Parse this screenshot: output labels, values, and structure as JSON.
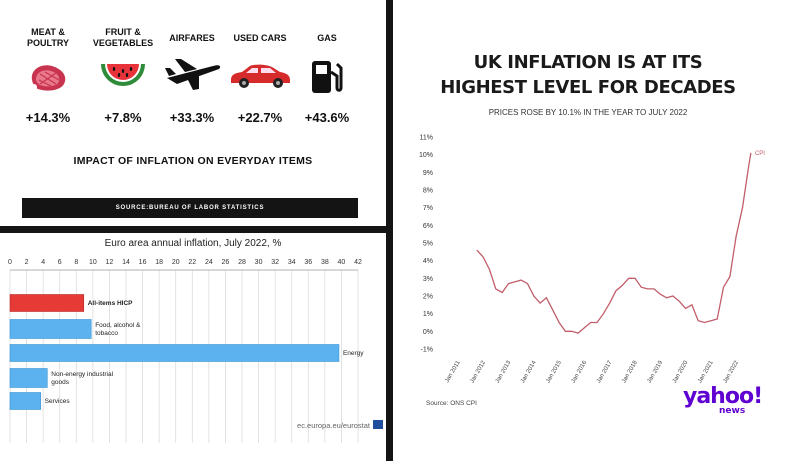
{
  "panel1": {
    "items": [
      {
        "label": "MEAT &\nPOULTRY",
        "value": "+14.3%",
        "icon": "meat-icon"
      },
      {
        "label": "FRUIT &\nVEGETABLES",
        "value": "+7.8%",
        "icon": "watermelon-icon"
      },
      {
        "label": "AIRFARES",
        "value": "+33.3%",
        "icon": "airplane-icon"
      },
      {
        "label": "USED CARS",
        "value": "+22.7%",
        "icon": "car-icon"
      },
      {
        "label": "GAS",
        "value": "+43.6%",
        "icon": "gas-pump-icon"
      }
    ],
    "headline": "IMPACT OF INFLATION ON EVERYDAY ITEMS",
    "source": "SOURCE:BUREAU OF LABOR STATISTICS"
  },
  "panel2": {
    "footer": "ec.europa.eu/eurostat"
  },
  "panel3": {
    "source": "Source: ONS CPI",
    "logo": "yahoo!",
    "logo_sub": "news"
  },
  "colors": {
    "eu_red": "#e63a37",
    "eu_blue": "#5bb2ee",
    "cpi_line": "#c25d6a",
    "yahoo_purple": "#5f01d1"
  },
  "chart_data": [
    {
      "type": "bar",
      "orientation": "horizontal",
      "title": "Euro area annual inflation, July 2022, %",
      "categories": [
        "All-items HICP",
        "Food, alcohol & tobacco",
        "Energy",
        "Non-energy industrial goods",
        "Services"
      ],
      "values": [
        8.9,
        9.8,
        39.7,
        4.5,
        3.7
      ],
      "highlight": "All-items HICP",
      "xlim": [
        0,
        42
      ],
      "xticks": [
        0,
        2,
        4,
        6,
        8,
        10,
        12,
        14,
        16,
        18,
        20,
        22,
        24,
        26,
        28,
        30,
        32,
        34,
        36,
        38,
        40,
        42
      ],
      "grid": true
    },
    {
      "type": "line",
      "title": "UK INFLATION IS AT ITS HIGHEST LEVEL FOR DECADES",
      "subtitle": "PRICES ROSE BY 10.1% IN THE YEAR TO JULY 2022",
      "series": [
        {
          "name": "CPI",
          "x": [
            "2011-09",
            "2011-12",
            "2012-03",
            "2012-06",
            "2012-09",
            "2012-12",
            "2013-03",
            "2013-06",
            "2013-09",
            "2013-12",
            "2014-03",
            "2014-06",
            "2014-09",
            "2014-12",
            "2015-03",
            "2015-06",
            "2015-09",
            "2015-12",
            "2016-03",
            "2016-06",
            "2016-09",
            "2016-12",
            "2017-03",
            "2017-06",
            "2017-09",
            "2017-12",
            "2018-03",
            "2018-06",
            "2018-09",
            "2018-12",
            "2019-03",
            "2019-06",
            "2019-09",
            "2019-12",
            "2020-03",
            "2020-06",
            "2020-09",
            "2020-12",
            "2021-03",
            "2021-06",
            "2021-09",
            "2021-12",
            "2022-03",
            "2022-06",
            "2022-07"
          ],
          "values": [
            4.6,
            4.2,
            3.5,
            2.4,
            2.2,
            2.7,
            2.8,
            2.9,
            2.7,
            2.0,
            1.6,
            1.9,
            1.2,
            0.5,
            0.0,
            0.0,
            -0.1,
            0.2,
            0.5,
            0.5,
            1.0,
            1.6,
            2.3,
            2.6,
            3.0,
            3.0,
            2.5,
            2.4,
            2.4,
            2.1,
            1.9,
            2.0,
            1.7,
            1.3,
            1.5,
            0.6,
            0.5,
            0.6,
            0.7,
            2.5,
            3.1,
            5.4,
            7.0,
            9.4,
            10.1
          ]
        }
      ],
      "xticks": [
        "Jan 2011",
        "Jan 2012",
        "Jan 2013",
        "Jan 2014",
        "Jan 2015",
        "Jan 2016",
        "Jan 2017",
        "Jan 2018",
        "Jan 2019",
        "Jan 2020",
        "Jan 2021",
        "Jan 2022"
      ],
      "yticks": [
        "-1%",
        "0%",
        "1%",
        "2%",
        "3%",
        "4%",
        "5%",
        "6%",
        "7%",
        "8%",
        "9%",
        "10%",
        "11%"
      ],
      "ylim": [
        -1,
        11
      ],
      "grid": false
    }
  ]
}
